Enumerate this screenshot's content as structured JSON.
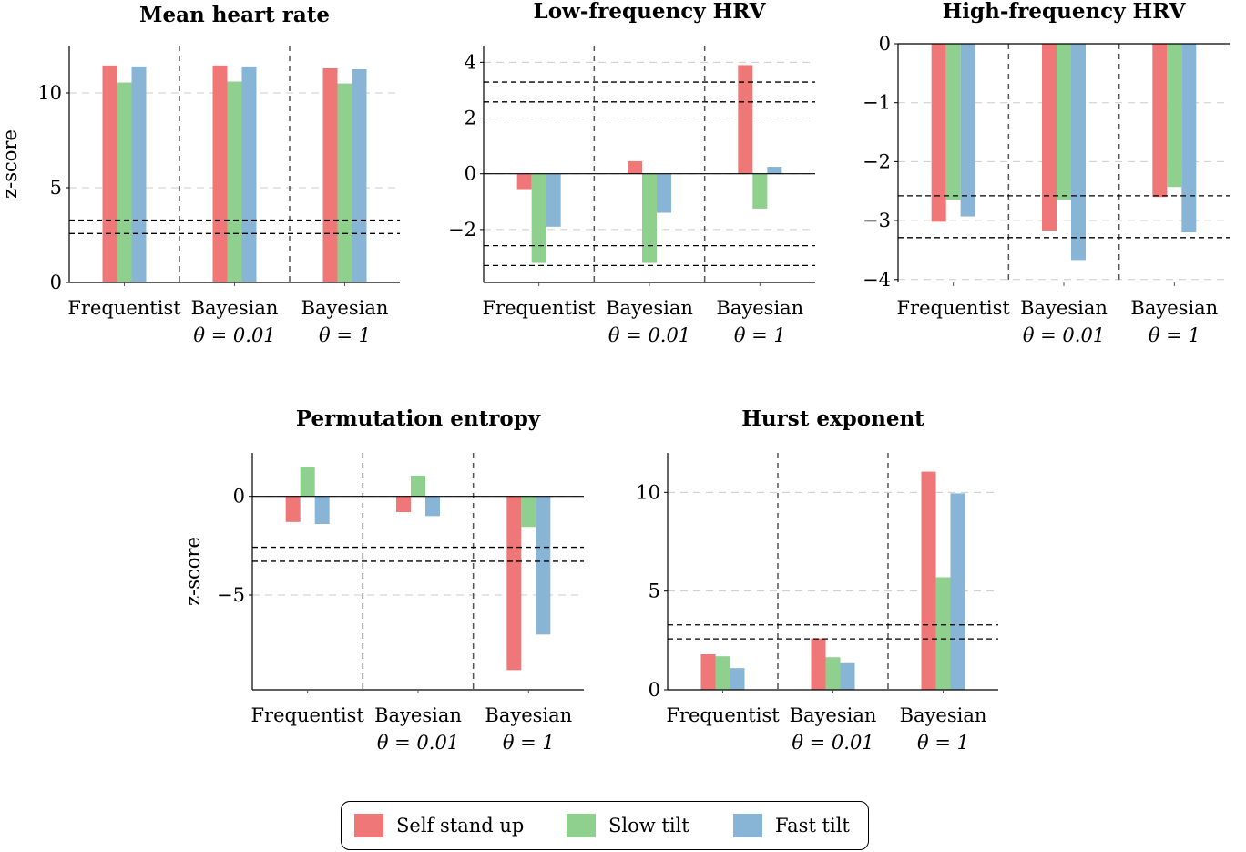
{
  "colors": {
    "Self stand up": "#f07777",
    "Slow tilt": "#8fd08f",
    "Fast tilt": "#88b4d6",
    "threshold": "#000000",
    "separator": "#555555",
    "grid": "#cccccc"
  },
  "legend": [
    {
      "name": "Self stand up",
      "color": "#f07777"
    },
    {
      "name": "Slow tilt",
      "color": "#8fd08f"
    },
    {
      "name": "Fast tilt",
      "color": "#88b4d6"
    }
  ],
  "chart_data": [
    {
      "type": "bar",
      "title": "Mean heart rate",
      "ylabel": "z-score",
      "ylim": [
        0,
        12.5
      ],
      "yticks": [
        0,
        5,
        10
      ],
      "ytick_labels": [
        "0",
        "5",
        "10"
      ],
      "categories": [
        [
          "Frequentist"
        ],
        [
          "Bayesian",
          "θ = 0.01"
        ],
        [
          "Bayesian",
          "θ = 1"
        ]
      ],
      "series": [
        {
          "name": "Self stand up",
          "values": [
            11.45,
            11.45,
            11.3
          ]
        },
        {
          "name": "Slow tilt",
          "values": [
            10.55,
            10.6,
            10.5
          ]
        },
        {
          "name": "Fast tilt",
          "values": [
            11.4,
            11.4,
            11.25
          ]
        }
      ],
      "thresholds": [
        2.58,
        3.29
      ],
      "grid": true
    },
    {
      "type": "bar",
      "title": "Low-frequency HRV",
      "ylabel": "",
      "ylim": [
        -3.9,
        4.6
      ],
      "yticks": [
        -2,
        0,
        2,
        4
      ],
      "ytick_labels": [
        "−2",
        "0",
        "2",
        "4"
      ],
      "categories": [
        [
          "Frequentist"
        ],
        [
          "Bayesian",
          "θ = 0.01"
        ],
        [
          "Bayesian",
          "θ = 1"
        ]
      ],
      "series": [
        {
          "name": "Self stand up",
          "values": [
            -0.55,
            0.45,
            3.9
          ]
        },
        {
          "name": "Slow tilt",
          "values": [
            -3.2,
            -3.2,
            -1.25
          ]
        },
        {
          "name": "Fast tilt",
          "values": [
            -1.9,
            -1.4,
            0.25
          ]
        }
      ],
      "thresholds": [
        -3.29,
        -2.58,
        2.58,
        3.29
      ],
      "grid": true
    },
    {
      "type": "bar",
      "title": "High-frequency HRV",
      "ylabel": "",
      "ylim": [
        -4.05,
        0
      ],
      "yticks": [
        -4,
        -3,
        -2,
        -1,
        0
      ],
      "ytick_labels": [
        "−4",
        "−3",
        "−2",
        "−1",
        "0"
      ],
      "categories": [
        [
          "Frequentist"
        ],
        [
          "Bayesian",
          "θ = 0.01"
        ],
        [
          "Bayesian",
          "θ = 1"
        ]
      ],
      "series": [
        {
          "name": "Self stand up",
          "values": [
            -3.02,
            -3.17,
            -2.6
          ]
        },
        {
          "name": "Slow tilt",
          "values": [
            -2.65,
            -2.65,
            -2.43
          ]
        },
        {
          "name": "Fast tilt",
          "values": [
            -2.93,
            -3.67,
            -3.2
          ]
        }
      ],
      "thresholds": [
        -3.29,
        -2.58
      ],
      "grid": true
    },
    {
      "type": "bar",
      "title": "Permutation entropy",
      "ylabel": "z-score",
      "ylim": [
        -9.8,
        2.2
      ],
      "yticks": [
        -5,
        0
      ],
      "ytick_labels": [
        "−5",
        "0"
      ],
      "categories": [
        [
          "Frequentist"
        ],
        [
          "Bayesian",
          "θ = 0.01"
        ],
        [
          "Bayesian",
          "θ = 1"
        ]
      ],
      "series": [
        {
          "name": "Self stand up",
          "values": [
            -1.3,
            -0.8,
            -8.8
          ]
        },
        {
          "name": "Slow tilt",
          "values": [
            1.5,
            1.05,
            -1.55
          ]
        },
        {
          "name": "Fast tilt",
          "values": [
            -1.4,
            -1.0,
            -7.0
          ]
        }
      ],
      "thresholds": [
        -3.29,
        -2.58
      ],
      "grid": true
    },
    {
      "type": "bar",
      "title": "Hurst exponent",
      "ylabel": "",
      "ylim": [
        0,
        12
      ],
      "yticks": [
        0,
        5,
        10
      ],
      "ytick_labels": [
        "0",
        "5",
        "10"
      ],
      "categories": [
        [
          "Frequentist"
        ],
        [
          "Bayesian",
          "θ = 0.01"
        ],
        [
          "Bayesian",
          "θ = 1"
        ]
      ],
      "series": [
        {
          "name": "Self stand up",
          "values": [
            1.8,
            2.6,
            11.05
          ]
        },
        {
          "name": "Slow tilt",
          "values": [
            1.7,
            1.65,
            5.7
          ]
        },
        {
          "name": "Fast tilt",
          "values": [
            1.1,
            1.35,
            9.95
          ]
        }
      ],
      "thresholds": [
        2.58,
        3.29
      ],
      "grid": true
    }
  ]
}
